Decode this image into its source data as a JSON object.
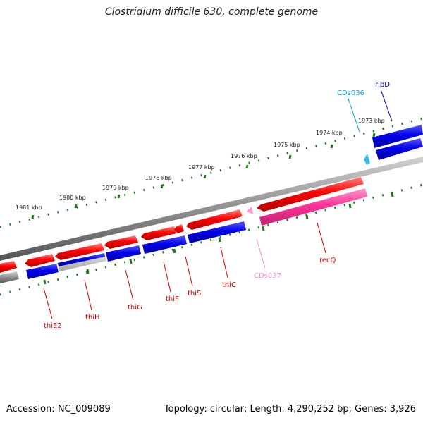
{
  "title": "Clostridium difficile 630, complete genome",
  "footer": {
    "accession": "Accession: NC_009089",
    "stats": "Topology: circular; Length: 4,290,252 bp; Genes: 3,926"
  },
  "colors": {
    "forward_cds": "#ff0000",
    "reverse_cds": "#0000ee",
    "accent_cds": "#ff44aa",
    "ribbon": "#888888",
    "tick": "#1a7a1a",
    "label_red": "#cc0000",
    "label_cyan": "#00aadd",
    "label_pink": "#ff88cc",
    "label_navy": "#000099"
  },
  "scale": {
    "ticks": [
      {
        "label": "1981 kbp"
      },
      {
        "label": "1980 kbp"
      },
      {
        "label": "1979 kbp"
      },
      {
        "label": "1978 kbp"
      },
      {
        "label": "1977 kbp"
      },
      {
        "label": "1976 kbp"
      },
      {
        "label": "1975 kbp"
      },
      {
        "label": "1974 kbp"
      },
      {
        "label": "1973 kbp"
      }
    ]
  },
  "genes": [
    {
      "name": "thiE2",
      "color": "red"
    },
    {
      "name": "thiH",
      "color": "red"
    },
    {
      "name": "thiG",
      "color": "red"
    },
    {
      "name": "thiF",
      "color": "red"
    },
    {
      "name": "thiS",
      "color": "red"
    },
    {
      "name": "thiC",
      "color": "red"
    },
    {
      "name": "CDs037",
      "color": "pink"
    },
    {
      "name": "recQ",
      "color": "red"
    },
    {
      "name": "CDs036",
      "color": "cyan"
    },
    {
      "name": "ribD",
      "color": "navy"
    }
  ]
}
